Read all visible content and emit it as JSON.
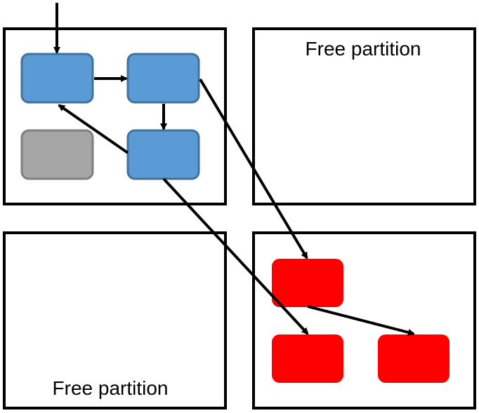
{
  "partitions": [
    {
      "id": "top-left",
      "label": ""
    },
    {
      "id": "top-right",
      "label": "Free partition"
    },
    {
      "id": "bottom-left",
      "label": "Free partition"
    },
    {
      "id": "bottom-right",
      "label": ""
    }
  ],
  "colors": {
    "blue_fill": "#5b9bd5",
    "blue_stroke": "#41719c",
    "gray_fill": "#a5a5a5",
    "gray_stroke": "#7f7f7f",
    "red_fill": "#ff0000",
    "red_stroke": "#ff0000",
    "partition_border": "#000000",
    "arrow": "#000000"
  },
  "nodes": [
    {
      "id": "a",
      "kind": "blue",
      "partition": "top-left"
    },
    {
      "id": "b",
      "kind": "blue",
      "partition": "top-left"
    },
    {
      "id": "c",
      "kind": "gray",
      "partition": "top-left"
    },
    {
      "id": "d",
      "kind": "blue",
      "partition": "top-left"
    },
    {
      "id": "e",
      "kind": "red",
      "partition": "bottom-right"
    },
    {
      "id": "f",
      "kind": "red",
      "partition": "bottom-right"
    },
    {
      "id": "g",
      "kind": "red",
      "partition": "bottom-right"
    }
  ],
  "edges": [
    {
      "from": "entry",
      "to": "a"
    },
    {
      "from": "a",
      "to": "b"
    },
    {
      "from": "b",
      "to": "d"
    },
    {
      "from": "d",
      "to": "a"
    },
    {
      "from": "b",
      "to": "e"
    },
    {
      "from": "d",
      "to": "f"
    },
    {
      "from": "e",
      "to": "g"
    }
  ]
}
